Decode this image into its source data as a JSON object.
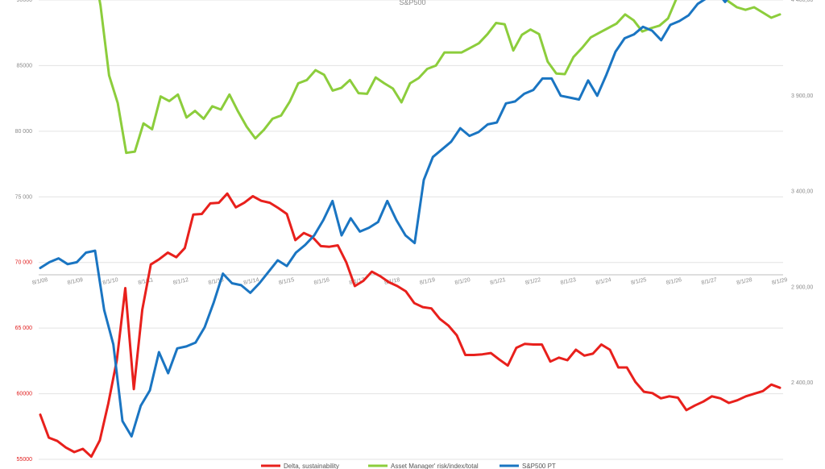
{
  "chart_data": {
    "type": "line",
    "title": "S&P500",
    "xlabel": "",
    "ylabel": "",
    "grid": true,
    "legend_position": "bottom",
    "x_tick_labels": [
      "8/1/08",
      "8/1/09",
      "8/1/10",
      "8/1/11",
      "8/1/12",
      "8/1/13",
      "8/1/14",
      "8/1/15",
      "8/1/16",
      "8/1/17",
      "8/1/18",
      "8/1/19",
      "8/1/20",
      "8/1/21",
      "8/1/22",
      "8/1/23",
      "8/1/24",
      "8/1/25",
      "8/1/26",
      "8/1/27",
      "8/1/28",
      "8/1/29"
    ],
    "left_axis": {
      "ylim": [
        0,
        7
      ],
      "ticks": [
        {
          "v": 7,
          "label": "90000",
          "color": "#8a8a8a"
        },
        {
          "v": 6,
          "label": "85000",
          "color": "#8a8a8a"
        },
        {
          "v": 5,
          "label": "80 000",
          "color": "#8a8a8a"
        },
        {
          "v": 4,
          "label": "75 000",
          "color": "#8a8a8a"
        },
        {
          "v": 3,
          "label": "70 000",
          "color": "#e01b1b"
        },
        {
          "v": 2,
          "label": "65 000",
          "color": "#e01b1b"
        },
        {
          "v": 1,
          "label": "60000",
          "color": "#e01b1b"
        },
        {
          "v": 0,
          "label": "55000",
          "color": "#e01b1b"
        }
      ]
    },
    "right_axis": {
      "ylim": [
        2000,
        4400
      ],
      "ticks": [
        {
          "v": 4400,
          "label": "4 400,00"
        },
        {
          "v": 3900,
          "label": "3 900,00"
        },
        {
          "v": 3400,
          "label": "3 400,00"
        },
        {
          "v": 2900,
          "label": "2 900,00"
        },
        {
          "v": 2400,
          "label": "2 400,00"
        }
      ]
    },
    "series": [
      {
        "name": "Delta, sustainability",
        "axis": "left",
        "color": "#e8201c",
        "values": [
          0.68,
          0.33,
          0.28,
          0.18,
          0.11,
          0.16,
          0.04,
          0.29,
          0.85,
          1.51,
          2.61,
          1.07,
          2.28,
          2.97,
          3.05,
          3.15,
          3.08,
          3.22,
          3.73,
          3.74,
          3.9,
          3.91,
          4.05,
          3.84,
          3.91,
          4.01,
          3.94,
          3.91,
          3.83,
          3.74,
          3.34,
          3.45,
          3.39,
          3.25,
          3.24,
          3.26,
          3.0,
          2.64,
          2.72,
          2.86,
          2.79,
          2.7,
          2.64,
          2.56,
          2.38,
          2.32,
          2.3,
          2.14,
          2.04,
          1.89,
          1.59,
          1.59,
          1.6,
          1.62,
          1.52,
          1.43,
          1.7,
          1.76,
          1.75,
          1.75,
          1.49,
          1.55,
          1.51,
          1.67,
          1.58,
          1.61,
          1.75,
          1.67,
          1.4,
          1.4,
          1.18,
          1.03,
          1.01,
          0.93,
          0.96,
          0.94,
          0.75,
          0.82,
          0.88,
          0.96,
          0.93,
          0.86,
          0.9,
          0.96,
          1.0,
          1.04,
          1.14,
          1.09
        ]
      },
      {
        "name": "Asset Manager' risk/index/total",
        "axis": "left",
        "color": "#8ccd3c",
        "values": [
          7.29,
          7.51,
          7.54,
          7.36,
          7.4,
          7.58,
          7.65,
          6.92,
          5.85,
          5.43,
          4.67,
          4.69,
          5.12,
          5.03,
          5.53,
          5.46,
          5.56,
          5.21,
          5.31,
          5.19,
          5.38,
          5.33,
          5.56,
          5.3,
          5.07,
          4.89,
          5.02,
          5.19,
          5.24,
          5.45,
          5.73,
          5.78,
          5.93,
          5.86,
          5.62,
          5.66,
          5.78,
          5.58,
          5.57,
          5.82,
          5.73,
          5.65,
          5.44,
          5.73,
          5.81,
          5.95,
          6.0,
          6.2,
          6.2,
          6.2,
          6.27,
          6.34,
          6.48,
          6.65,
          6.63,
          6.23,
          6.47,
          6.55,
          6.48,
          6.06,
          5.88,
          5.87,
          6.13,
          6.27,
          6.43,
          6.5,
          6.57,
          6.64,
          6.78,
          6.69,
          6.52,
          6.57,
          6.61,
          6.72,
          7.03,
          7.08,
          7.08,
          7.04,
          7.06,
          7.08,
          6.98,
          6.89,
          6.85,
          6.89,
          6.81,
          6.73,
          6.78
        ]
      },
      {
        "name": "S&P500 PT",
        "axis": "right",
        "color": "#1a75c2",
        "values": [
          3000,
          3030,
          3050,
          3020,
          3030,
          3080,
          3090,
          2780,
          2600,
          2200,
          2120,
          2280,
          2360,
          2560,
          2450,
          2580,
          2590,
          2610,
          2690,
          2820,
          2970,
          2920,
          2910,
          2870,
          2920,
          2980,
          3040,
          3010,
          3080,
          3120,
          3170,
          3250,
          3350,
          3170,
          3260,
          3190,
          3210,
          3240,
          3350,
          3250,
          3170,
          3130,
          3460,
          3580,
          3620,
          3660,
          3730,
          3690,
          3710,
          3750,
          3760,
          3860,
          3870,
          3910,
          3930,
          3990,
          3990,
          3900,
          3890,
          3880,
          3980,
          3900,
          4010,
          4130,
          4200,
          4220,
          4260,
          4240,
          4190,
          4270,
          4290,
          4320,
          4380,
          4410,
          4450,
          4390,
          4450,
          4500,
          4510,
          4530,
          4550,
          4600
        ]
      }
    ]
  }
}
